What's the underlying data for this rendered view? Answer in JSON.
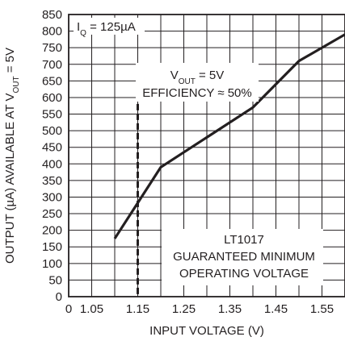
{
  "chart_data": {
    "type": "line",
    "x_tick_labels": [
      "0",
      "1.05",
      "1.15",
      "1.25",
      "1.35",
      "1.45",
      "1.55"
    ],
    "y_ticks": [
      0,
      50,
      100,
      150,
      200,
      250,
      300,
      350,
      400,
      450,
      500,
      550,
      600,
      650,
      700,
      750,
      800,
      850
    ],
    "xlim": [
      1.0,
      1.6
    ],
    "ylim": [
      0,
      850
    ],
    "xlabel": "INPUT VOLTAGE (V)",
    "ylabel": {
      "before": "OUTPUT (µA) AVAILABLE AT V",
      "sub": "OUT",
      "after": " = 5V"
    },
    "grid": true,
    "series": [
      {
        "x": [
          1.1,
          1.2,
          1.3,
          1.4,
          1.5,
          1.6
        ],
        "y": [
          175,
          390,
          480,
          570,
          710,
          790
        ]
      }
    ],
    "reference_line": {
      "x": 1.15,
      "y_top": 610,
      "style": "dashed"
    },
    "annotations": {
      "iq": {
        "main": "I",
        "sub": "Q",
        "rest": " = 125µA"
      },
      "vout": {
        "main": "V",
        "sub": "OUT",
        "rest": " = 5V"
      },
      "efficiency": "EFFICIENCY ≈ 50%",
      "lt_lines": [
        "LT1017",
        "GUARANTEED MINIMUM",
        "OPERATING VOLTAGE"
      ]
    }
  }
}
